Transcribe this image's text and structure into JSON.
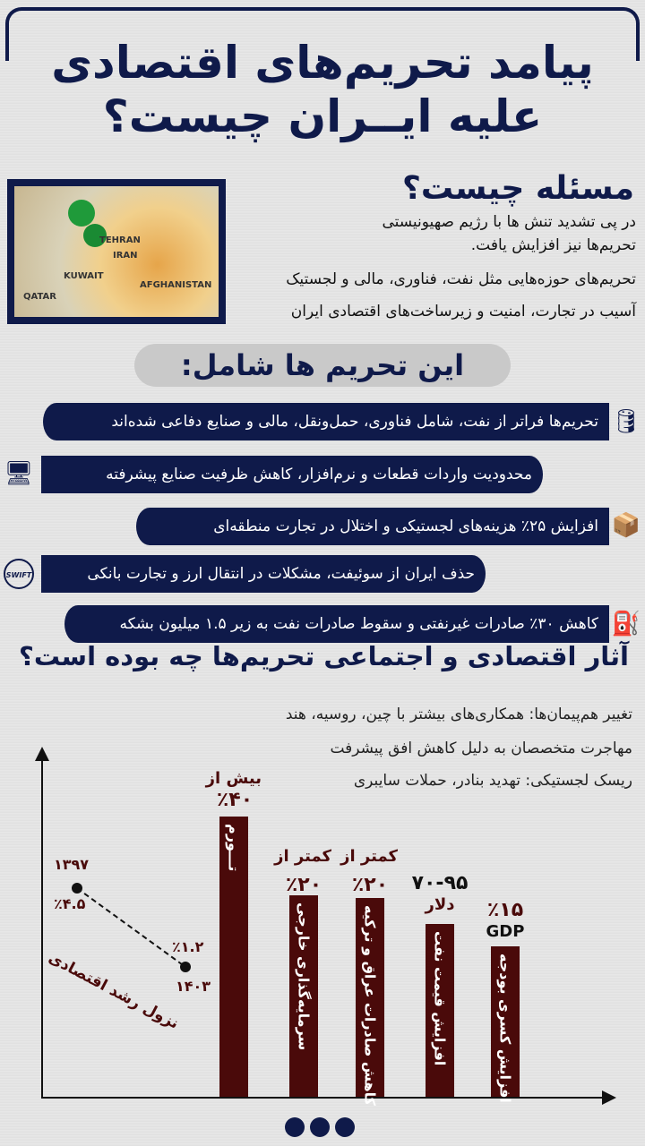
{
  "title": {
    "line1": "پیامد تحریم‌های اقتصادی",
    "line2": "علیه ایــران چیست؟"
  },
  "intro": {
    "heading": "مسئله چیست؟",
    "lines": [
      "در پی تشدید تنش ها با رژیم صهیونیستی",
      "تحریم‌ها نیز افزایش یافت.",
      "تحریم‌های حوزه‌هایی مثل نفت، فناوری، مالی و لجستیک",
      "آسیب در تجارت، امنیت و زیرساخت‌های اقتصادی ایران"
    ],
    "map_labels": [
      "TEHRAN",
      "IRAN",
      "KUWAIT",
      "QATAR",
      "AFGHANISTAN"
    ]
  },
  "sanctions": {
    "heading": "این تحریم ها شامل:",
    "items": [
      {
        "text": "تحریم‌ها فراتر از نفت، شامل فناوری، حمل‌ونقل، مالی و صنایع دفاعی شده‌اند",
        "icon": "oil-barrel-icon"
      },
      {
        "text": "محدودیت واردات قطعات و نرم‌افزار، کاهش ظرفیت صنایع پیشرفته",
        "icon": "computer-gear-icon"
      },
      {
        "text": "افزایش ۲۵٪ هزینه‌های لجستیکی و اختلال در تجارت منطقه‌ای",
        "icon": "box-dollar-icon"
      },
      {
        "text": "حذف ایران از سوئیفت، مشکلات در انتقال ارز و تجارت بانکی",
        "icon": "swift-globe-icon",
        "icon_text": "SWIFT"
      },
      {
        "text": "کاهش ۳۰٪ صادرات غیرنفتی و سقوط صادرات نفت به زیر ۱.۵ میلیون بشکه",
        "icon": "oil-export-icon"
      }
    ]
  },
  "effects": {
    "heading": "آثار اقتصادی و اجتماعی تحریم‌ها چه بوده است؟",
    "lines": [
      "تغییر هم‌پیمان‌ها: همکاری‌های بیشتر با چین، روسیه، هند",
      "مهاجرت متخصصان به دلیل کاهش افق پیشرفت",
      "ریسک لجستیکی: تهدید بنادر، حملات سایبری"
    ]
  },
  "colors": {
    "navy": "#0f1a4a",
    "maroon": "#4a0a0a",
    "background": "#e4e4e4"
  },
  "chart_data": {
    "type": "bar",
    "categories": [
      "تـــورم",
      "سرمایه‌گذاری خارجی",
      "کاهش صادرات عراق و ترکیه",
      "افزایش قیمت نفت",
      "افزایش کسری بودجه"
    ],
    "value_labels": [
      [
        "بیش از",
        "٪۴۰"
      ],
      [
        "کمتر از",
        "٪۲۰"
      ],
      [
        "کمتر از",
        "٪۲۰"
      ],
      [
        "۷۰-۹۵",
        "دلار"
      ],
      [
        "٪۱۵",
        "GDP"
      ]
    ],
    "line": {
      "label": "نزول رشد اقتصادی",
      "points": [
        {
          "x": "۱۳۹۷",
          "y": "٪۴.۵"
        },
        {
          "x": "۱۴۰۳",
          "y": "٪۱.۲"
        }
      ]
    }
  }
}
